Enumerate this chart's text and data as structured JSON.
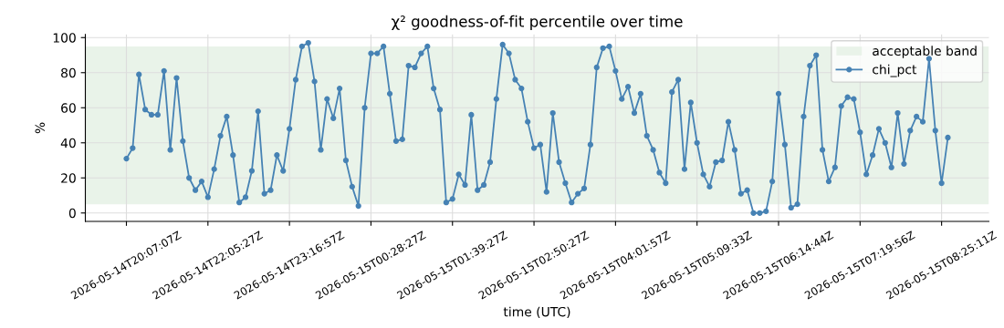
{
  "chart_data": {
    "type": "line",
    "title": "χ² goodness-of-fit percentile over time",
    "xlabel": "time (UTC)",
    "ylabel": "%",
    "categories": [
      "2026-05-14T20:07:07Z",
      null,
      null,
      null,
      null,
      null,
      null,
      null,
      null,
      null,
      null,
      null,
      null,
      "2026-05-14T22:05:27Z",
      null,
      null,
      null,
      null,
      null,
      null,
      null,
      null,
      null,
      null,
      null,
      null,
      "2026-05-14T23:16:57Z",
      null,
      null,
      null,
      null,
      null,
      null,
      null,
      null,
      null,
      null,
      null,
      null,
      "2026-05-15T00:28:27Z",
      null,
      null,
      null,
      null,
      null,
      null,
      null,
      null,
      null,
      null,
      null,
      null,
      "2026-05-15T01:39:27Z",
      null,
      null,
      null,
      null,
      null,
      null,
      null,
      null,
      null,
      null,
      null,
      null,
      "2026-05-15T02:50:27Z",
      null,
      null,
      null,
      null,
      null,
      null,
      null,
      null,
      null,
      null,
      null,
      null,
      "2026-05-15T04:01:57Z",
      null,
      null,
      null,
      null,
      null,
      null,
      null,
      null,
      null,
      null,
      null,
      null,
      "2026-05-15T05:09:33Z",
      null,
      null,
      null,
      null,
      null,
      null,
      null,
      null,
      null,
      null,
      null,
      null,
      "2026-05-15T06:14:44Z",
      null,
      null,
      null,
      null,
      null,
      null,
      null,
      null,
      null,
      null,
      null,
      null,
      "2026-05-15T07:19:56Z",
      null,
      null,
      null,
      null,
      null,
      null,
      null,
      null,
      null,
      null,
      null,
      null,
      "2026-05-15T08:25:11Z",
      null
    ],
    "series": [
      {
        "name": "chi_pct",
        "color": "#4682b4",
        "values": [
          31,
          37,
          79,
          59,
          56,
          56,
          81,
          36,
          77,
          41,
          20,
          13,
          18,
          9,
          25,
          44,
          55,
          33,
          6,
          9,
          24,
          58,
          11,
          13,
          33,
          24,
          48,
          76,
          95,
          97,
          75,
          36,
          65,
          54,
          71,
          30,
          15,
          4,
          60,
          91,
          91,
          95,
          68,
          41,
          42,
          84,
          83,
          91,
          95,
          71,
          59,
          6,
          8,
          22,
          16,
          56,
          13,
          16,
          29,
          65,
          96,
          91,
          76,
          71,
          52,
          37,
          39,
          12,
          57,
          29,
          17,
          6,
          11,
          14,
          39,
          83,
          94,
          95,
          81,
          65,
          72,
          57,
          68,
          44,
          36,
          23,
          17,
          69,
          76,
          25,
          63,
          40,
          22,
          15,
          29,
          30,
          52,
          36,
          11,
          13,
          0,
          0,
          1,
          18,
          68,
          39,
          3,
          5,
          55,
          84,
          90,
          36,
          18,
          26,
          61,
          66,
          65,
          46,
          22,
          33,
          48,
          40,
          26,
          57,
          28,
          47,
          55,
          52,
          88,
          47,
          17,
          43
        ]
      }
    ],
    "bands": [
      {
        "axis": "y",
        "from": 5,
        "to": 95,
        "label": "acceptable band",
        "color": "#e9f3e9"
      }
    ],
    "ylim": [
      -4.8,
      101.8
    ],
    "yticks": [
      0,
      20,
      40,
      60,
      80,
      100
    ],
    "grid": true,
    "legend": "top right",
    "marker": "circle",
    "line_style": "solid"
  }
}
